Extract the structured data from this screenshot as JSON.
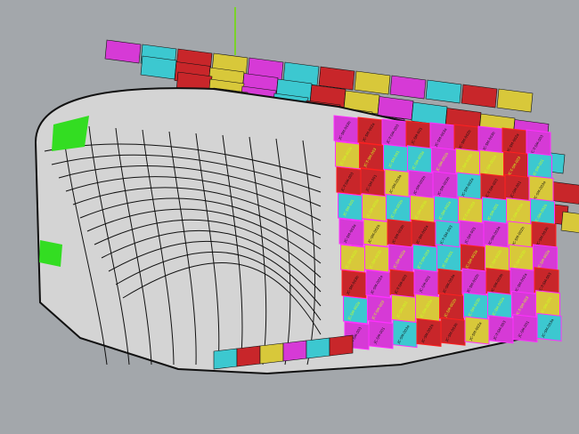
{
  "viewport": {
    "background": "#a3a7ab"
  },
  "model": {
    "shell_color": "#d4d4d4",
    "edge_color": "#111111",
    "accent_green": "#33dd22",
    "panel_colors": [
      "#d63ad6",
      "#3cc8d0",
      "#c8262a",
      "#d8c83a"
    ],
    "panel_labels": [
      "JC-SM-003b",
      "JC-SM-002a",
      "JC-T-SM-003",
      "JC-SM-001",
      "JC-SM-003a",
      "JC-SM-002b"
    ]
  }
}
